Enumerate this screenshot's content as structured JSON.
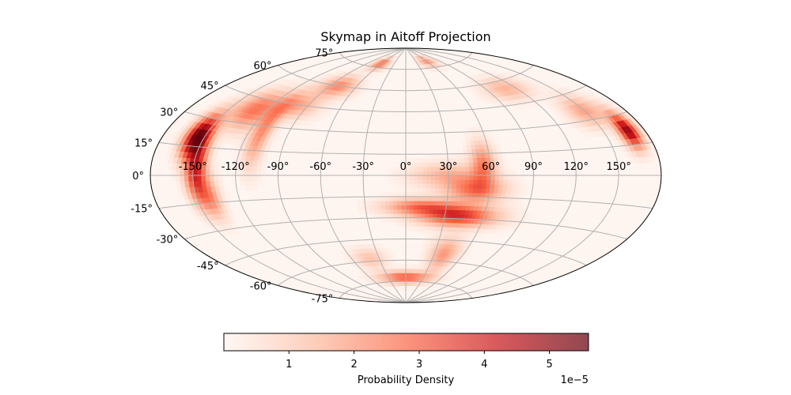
{
  "chart_data": {
    "type": "heatmap",
    "projection": "aitoff",
    "title": "Skymap in Aitoff Projection",
    "grid": true,
    "lon_ticks": [
      -150,
      -120,
      -90,
      -60,
      -30,
      0,
      30,
      60,
      90,
      120,
      150
    ],
    "lon_tick_labels": [
      "-150°",
      "-120°",
      "-90°",
      "-60°",
      "-30°",
      "0°",
      "30°",
      "60°",
      "90°",
      "120°",
      "150°"
    ],
    "lat_ticks": [
      -75,
      -60,
      -45,
      -30,
      -15,
      0,
      15,
      30,
      45,
      60,
      75
    ],
    "lat_tick_labels": [
      "-75°",
      "-60°",
      "-45°",
      "-30°",
      "-15°",
      "0°",
      "15°",
      "30°",
      "45°",
      "60°",
      "75°"
    ],
    "colormap": "Reds",
    "colormap_colors": [
      "#fff5f0",
      "#fcbba1",
      "#fb6a4a",
      "#cb181d",
      "#67000d"
    ],
    "density_features": [
      {
        "lon": -155,
        "lat": 20,
        "sigma_lon": 6,
        "sigma_lat": 8,
        "value": 5.6
      },
      {
        "lon": -148,
        "lat": 2,
        "sigma_lon": 5,
        "sigma_lat": 12,
        "value": 4.0
      },
      {
        "lon": -140,
        "lat": -12,
        "sigma_lon": 5,
        "sigma_lat": 8,
        "value": 2.0
      },
      {
        "lon": -130,
        "lat": 38,
        "sigma_lon": 12,
        "sigma_lat": 8,
        "value": 2.5
      },
      {
        "lon": -110,
        "lat": 25,
        "sigma_lon": 5,
        "sigma_lat": 14,
        "value": 2.0
      },
      {
        "lon": -100,
        "lat": 45,
        "sigma_lon": 14,
        "sigma_lat": 6,
        "value": 1.8
      },
      {
        "lon": -80,
        "lat": 60,
        "sigma_lon": 14,
        "sigma_lat": 5,
        "value": 2.2
      },
      {
        "lon": -60,
        "lat": 78,
        "sigma_lon": 12,
        "sigma_lat": 3,
        "value": 2.8
      },
      {
        "lon": 168,
        "lat": 22,
        "sigma_lon": 5,
        "sigma_lat": 6,
        "value": 5.0
      },
      {
        "lon": 150,
        "lat": 35,
        "sigma_lon": 10,
        "sigma_lat": 6,
        "value": 1.8
      },
      {
        "lon": 110,
        "lat": 55,
        "sigma_lon": 16,
        "sigma_lat": 5,
        "value": 1.5
      },
      {
        "lon": 60,
        "lat": 80,
        "sigma_lon": 15,
        "sigma_lat": 3,
        "value": 2.0
      },
      {
        "lon": 40,
        "lat": -28,
        "sigma_lon": 20,
        "sigma_lat": 5,
        "value": 3.8
      },
      {
        "lon": 10,
        "lat": -22,
        "sigma_lon": 18,
        "sigma_lat": 4,
        "value": 2.5
      },
      {
        "lon": 50,
        "lat": -10,
        "sigma_lon": 14,
        "sigma_lat": 6,
        "value": 2.6
      },
      {
        "lon": 55,
        "lat": 8,
        "sigma_lon": 6,
        "sigma_lat": 10,
        "value": 2.3
      },
      {
        "lon": 30,
        "lat": 0,
        "sigma_lon": 18,
        "sigma_lat": 6,
        "value": 1.5
      },
      {
        "lon": 0,
        "lat": -72,
        "sigma_lon": 30,
        "sigma_lat": 3,
        "value": 3.0
      },
      {
        "lon": 40,
        "lat": -55,
        "sigma_lon": 10,
        "sigma_lat": 8,
        "value": 2.0
      },
      {
        "lon": -40,
        "lat": -58,
        "sigma_lon": 12,
        "sigma_lat": 5,
        "value": 1.2
      }
    ],
    "colorbar": {
      "label": "Probability Density",
      "ticks": [
        1,
        2,
        3,
        4,
        5
      ],
      "tick_labels": [
        "1",
        "2",
        "3",
        "4",
        "5"
      ],
      "range": [
        0,
        5.6
      ],
      "offset_text": "1e−5",
      "orientation": "horizontal",
      "placement": "bottom"
    }
  }
}
